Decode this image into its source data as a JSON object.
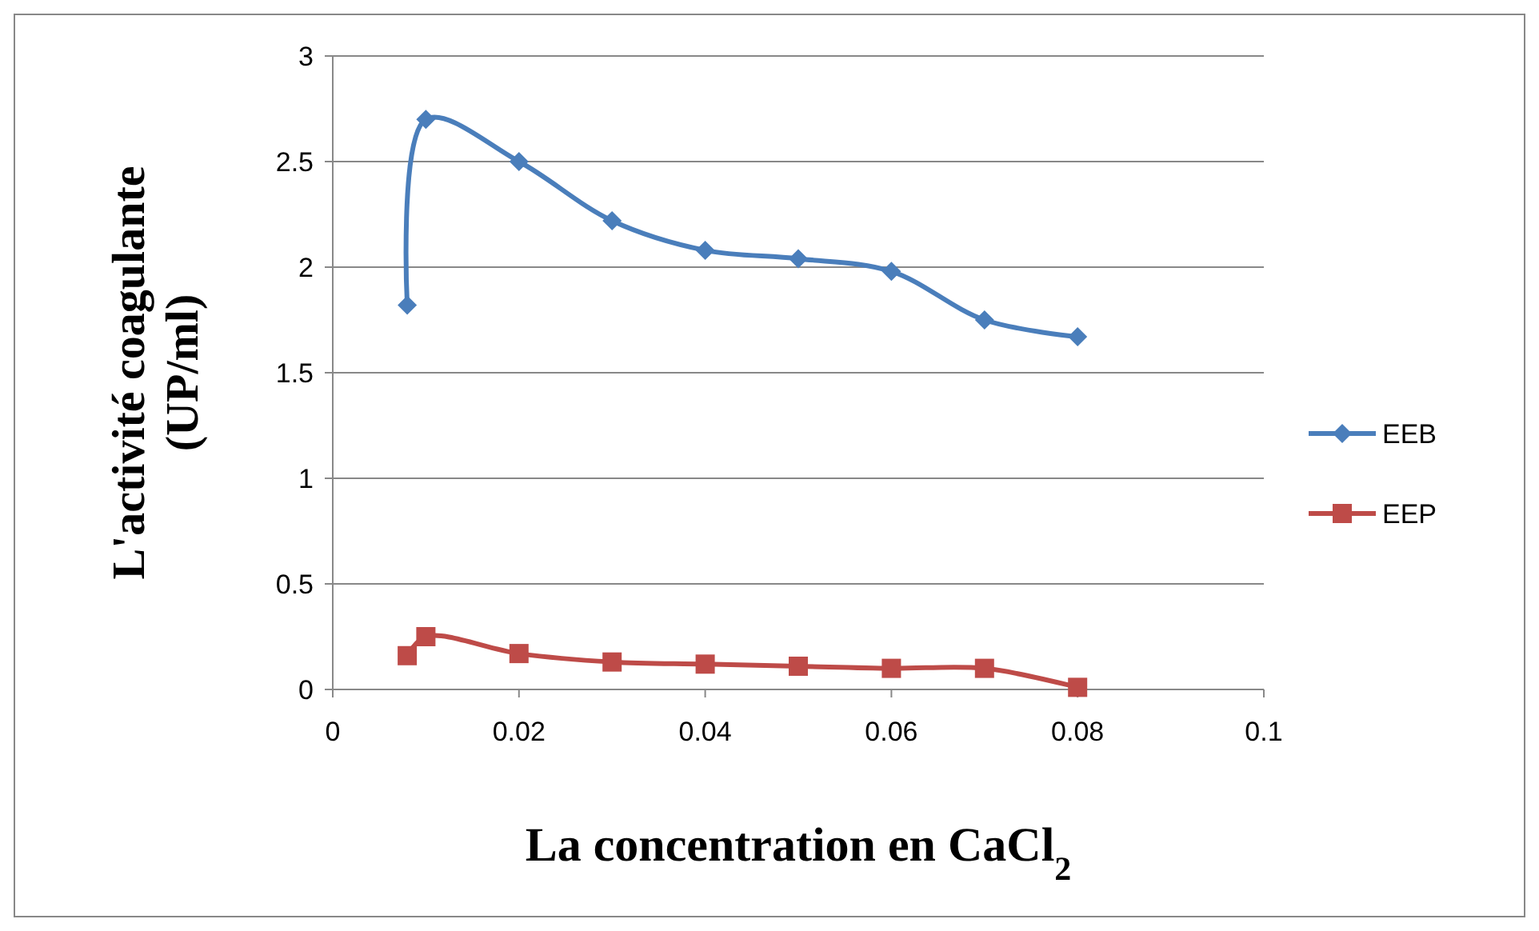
{
  "chart_data": {
    "type": "line",
    "xlabel": "La concentration en CaCl$_{2}$",
    "ylabel": "L'activité coagulante (UP/ml)",
    "xlim": [
      0,
      0.1
    ],
    "xticks": [
      0,
      0.02,
      0.04,
      0.06,
      0.08,
      0.1
    ],
    "ylim": [
      0,
      3
    ],
    "yticks": [
      0,
      0.5,
      1,
      1.5,
      2,
      2.5,
      3
    ],
    "grid": "y",
    "legend": "right",
    "series": [
      {
        "name": "EEB",
        "color": "#4a7ebb",
        "marker": "diamond",
        "x": [
          0.008,
          0.01,
          0.02,
          0.03,
          0.04,
          0.05,
          0.06,
          0.07,
          0.08
        ],
        "values": [
          1.82,
          2.7,
          2.5,
          2.22,
          2.08,
          2.04,
          1.98,
          1.75,
          1.67
        ]
      },
      {
        "name": "EEP",
        "color": "#be4b48",
        "marker": "square",
        "x": [
          0.008,
          0.01,
          0.02,
          0.03,
          0.04,
          0.05,
          0.06,
          0.07,
          0.08
        ],
        "values": [
          0.16,
          0.25,
          0.17,
          0.13,
          0.12,
          0.11,
          0.1,
          0.1,
          0.01
        ]
      }
    ]
  }
}
